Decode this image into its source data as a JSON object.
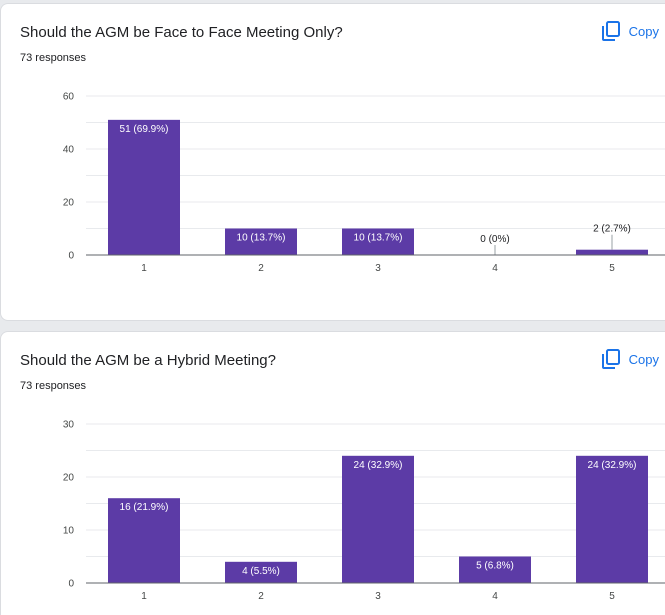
{
  "colors": {
    "bar": "#5c3ba6",
    "grid": "#e8eaed",
    "axis": "#5f6368",
    "copy": "#1a73e8"
  },
  "copy_icon": "copy-icon",
  "chart_data": [
    {
      "type": "bar",
      "title": "Should the AGM be Face to Face Meeting Only?",
      "subtitle": "73 responses",
      "copy_label": "Copy",
      "categories": [
        "1",
        "2",
        "3",
        "4",
        "5"
      ],
      "values": [
        51,
        10,
        10,
        0,
        2
      ],
      "data_labels": [
        "51 (69.9%)",
        "10 (13.7%)",
        "10 (13.7%)",
        "0 (0%)",
        "2 (2.7%)"
      ],
      "ylim": [
        0,
        60
      ],
      "yticks": [
        0,
        20,
        40,
        60
      ],
      "minor_step": 10,
      "grid": true,
      "xlabel": "",
      "ylabel": ""
    },
    {
      "type": "bar",
      "title": "Should the AGM be a Hybrid Meeting?",
      "subtitle": "73 responses",
      "copy_label": "Copy",
      "categories": [
        "1",
        "2",
        "3",
        "4",
        "5"
      ],
      "values": [
        16,
        4,
        24,
        5,
        24
      ],
      "data_labels": [
        "16 (21.9%)",
        "4 (5.5%)",
        "24 (32.9%)",
        "5 (6.8%)",
        "24 (32.9%)"
      ],
      "ylim": [
        0,
        30
      ],
      "yticks": [
        0,
        10,
        20,
        30
      ],
      "minor_step": 5,
      "grid": true,
      "xlabel": "",
      "ylabel": ""
    }
  ]
}
